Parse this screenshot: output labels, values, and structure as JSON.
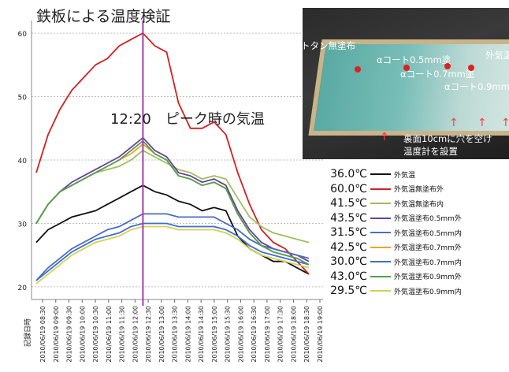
{
  "title": "鉄板による温度検証",
  "annotation": "12:20　ピーク時の気温",
  "photo": {
    "labels": [
      "トタン無塗布",
      "αコート0.5mm塗",
      "αコート0.7mm塗",
      "αコート0.9mm塗",
      "外気温",
      "裏面10cmに穴を空け",
      "温度計を設置"
    ]
  },
  "chart_data": {
    "type": "line",
    "title": "鉄板による温度検証",
    "xlabel": "記録日時",
    "ylabel": "",
    "ylim": [
      18,
      62
    ],
    "yticks": [
      20,
      30,
      40,
      50,
      60
    ],
    "x": [
      "2010/06/19 08:10",
      "2010/06/19 08:30",
      "2010/06/19 09:00",
      "2010/06/19 09:30",
      "2010/06/19 10:00",
      "2010/06/19 10:30",
      "2010/06/19 11:00",
      "2010/06/19 11:30",
      "2010/06/19 12:00",
      "2010/06/19 12:20",
      "2010/06/19 12:40",
      "2010/06/19 13:00",
      "2010/06/19 13:30",
      "2010/06/19 14:00",
      "2010/06/19 14:30",
      "2010/06/19 15:00",
      "2010/06/19 15:30",
      "2010/06/19 16:00",
      "2010/06/19 16:30",
      "2010/06/19 17:00",
      "2010/06/19 17:30",
      "2010/06/19 18:00",
      "2010/06/19 18:30",
      "2010/06/19 19:00"
    ],
    "xtick_labels": [
      "2010/06/19 08:30",
      "2010/06/19 09:00",
      "2010/06/19 09:30",
      "2010/06/19 10:00",
      "2010/06/19 10:30",
      "2010/06/19 11:00",
      "2010/06/19 11:30",
      "2010/06/19 12:00",
      "2010/06/19 12:30",
      "2010/06/19 13:00",
      "2010/06/19 13:30",
      "2010/06/19 14:00",
      "2010/06/19 14:30",
      "2010/06/19 15:00",
      "2010/06/19 15:30",
      "2010/06/19 16:00",
      "2010/06/19 16:30",
      "2010/06/19 17:00",
      "2010/06/19 17:30",
      "2010/06/19 18:00",
      "2010/06/19 18:30",
      "2010/06/19 19:00"
    ],
    "series": [
      {
        "name": "外気温",
        "peak": "36.0℃",
        "color": "#111111",
        "values": [
          27,
          29,
          30,
          31,
          31.5,
          32,
          33,
          34,
          35,
          36,
          35,
          34.5,
          33.5,
          33,
          32,
          32.5,
          32,
          28,
          26,
          25,
          24,
          24,
          23,
          22
        ]
      },
      {
        "name": "外気温無塗布外",
        "peak": "60.0℃",
        "color": "#d42020",
        "values": [
          38,
          44,
          48,
          51,
          53,
          55,
          56,
          58,
          59,
          60,
          58,
          57,
          49,
          45,
          45,
          46,
          44,
          38,
          33,
          29,
          27,
          26,
          24,
          22
        ]
      },
      {
        "name": "外気温無塗布内",
        "peak": "41.5℃",
        "color": "#9fbf5f",
        "values": [
          30,
          33,
          35,
          36,
          37,
          38,
          38.5,
          39,
          40,
          41.5,
          40.5,
          39.5,
          38.5,
          38,
          37,
          37.5,
          37,
          34,
          31,
          29.5,
          28.5,
          28,
          27.5,
          27
        ]
      },
      {
        "name": "外気温塗布0.5mm外",
        "peak": "43.5℃",
        "color": "#6a3fa0",
        "values": [
          30,
          33,
          35,
          36.5,
          37.5,
          38.5,
          39.5,
          40.5,
          42,
          43.5,
          41.5,
          40.5,
          38,
          37.5,
          36.5,
          37,
          36,
          32,
          29,
          27,
          26,
          25.5,
          25,
          24
        ]
      },
      {
        "name": "外気温塗布0.5mm内",
        "peak": "31.5℃",
        "color": "#4b6cc0",
        "values": [
          21,
          23,
          24.5,
          26,
          27,
          28,
          29,
          29.5,
          30.5,
          31.5,
          31.5,
          31.5,
          31,
          31,
          31,
          31,
          30,
          29,
          27.5,
          26.5,
          26,
          25.5,
          25,
          24.5
        ]
      },
      {
        "name": "外気温塗布0.7mm外",
        "peak": "42.5℃",
        "color": "#f0a030",
        "values": [
          30,
          33,
          35,
          36,
          37,
          38,
          39,
          40,
          41,
          42.5,
          41,
          40,
          37.5,
          37,
          36,
          36.5,
          35.5,
          31.5,
          28.5,
          26.5,
          25.5,
          25,
          24.5,
          23.5
        ]
      },
      {
        "name": "外気温塗布0.7mm内",
        "peak": "30.0℃",
        "color": "#3a6fd0",
        "values": [
          21,
          22.5,
          24,
          25.5,
          26.5,
          27.5,
          28,
          28.5,
          29.5,
          30,
          30,
          30,
          29.5,
          29.5,
          29.5,
          29.5,
          29,
          28,
          26.5,
          25.5,
          25,
          24.5,
          24,
          23.5
        ]
      },
      {
        "name": "外気温塗布0.9mm外",
        "peak": "43.0℃",
        "color": "#4fa050",
        "values": [
          30,
          33,
          35,
          36,
          37,
          38,
          39,
          40,
          41.5,
          43,
          41,
          40,
          37.5,
          37,
          36,
          36.5,
          35.5,
          31.5,
          28.5,
          26.5,
          25.5,
          25,
          24.5,
          23.5
        ]
      },
      {
        "name": "外気温塗布0.9mm内",
        "peak": "29.5℃",
        "color": "#d8d050",
        "values": [
          20.5,
          22,
          23.5,
          25,
          26,
          27,
          27.5,
          28,
          29,
          29.5,
          29.5,
          29.5,
          29,
          29,
          29,
          29,
          28.5,
          27.5,
          26,
          25,
          24.5,
          24,
          23.5,
          23
        ]
      }
    ],
    "peak_marker_x": "2010/06/19 12:20",
    "grid": true
  }
}
